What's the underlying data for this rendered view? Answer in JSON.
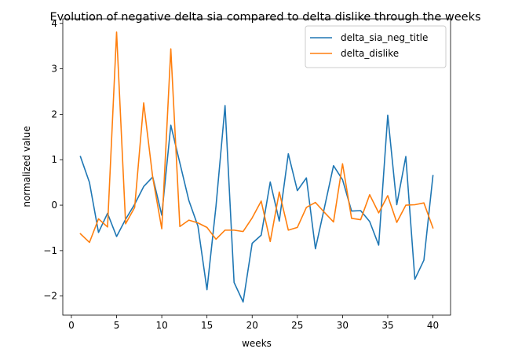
{
  "chart_data": {
    "type": "line",
    "title": "Evolution of negative delta sia compared to delta dislike through the weeks",
    "xlabel": "weeks",
    "ylabel": "normalized value",
    "xlim": [
      -0.95,
      41.95
    ],
    "ylim": [
      -2.42,
      4.1
    ],
    "xticks": [
      0,
      5,
      10,
      15,
      20,
      25,
      30,
      35,
      40
    ],
    "yticks": [
      -2,
      -1,
      0,
      1,
      2,
      3,
      4
    ],
    "grid": false,
    "legend_position": "upper-right",
    "x": [
      1,
      2,
      3,
      4,
      5,
      6,
      7,
      8,
      9,
      10,
      11,
      12,
      13,
      14,
      15,
      16,
      17,
      18,
      19,
      20,
      21,
      22,
      23,
      24,
      25,
      26,
      27,
      28,
      29,
      30,
      31,
      32,
      33,
      34,
      35,
      36,
      37,
      38,
      39,
      40
    ],
    "series": [
      {
        "name": "delta_sia_neg_title",
        "color": "#1f77b4",
        "values": [
          1.07,
          0.5,
          -0.6,
          -0.18,
          -0.69,
          -0.31,
          0.02,
          0.41,
          0.62,
          -0.22,
          1.76,
          0.93,
          0.1,
          -0.46,
          -1.86,
          -0.02,
          2.19,
          -1.7,
          -2.13,
          -0.84,
          -0.66,
          0.51,
          -0.35,
          1.13,
          0.32,
          0.6,
          -0.96,
          -0.05,
          0.87,
          0.56,
          -0.13,
          -0.12,
          -0.36,
          -0.88,
          1.98,
          0.01,
          1.07,
          -1.63,
          -1.21,
          0.65
        ]
      },
      {
        "name": "delta_dislike",
        "color": "#ff7f0e",
        "values": [
          -0.63,
          -0.82,
          -0.3,
          -0.48,
          3.81,
          -0.41,
          -0.05,
          2.25,
          0.61,
          -0.52,
          3.44,
          -0.47,
          -0.33,
          -0.39,
          -0.49,
          -0.75,
          -0.55,
          -0.55,
          -0.58,
          -0.28,
          0.09,
          -0.8,
          0.29,
          -0.55,
          -0.49,
          -0.05,
          0.06,
          -0.16,
          -0.37,
          0.91,
          -0.29,
          -0.32,
          0.23,
          -0.17,
          0.21,
          -0.38,
          0.0,
          0.01,
          0.05,
          -0.5
        ]
      }
    ]
  }
}
